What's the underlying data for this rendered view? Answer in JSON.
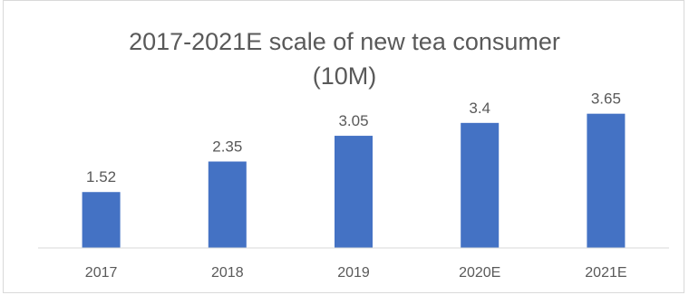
{
  "chart_data": {
    "type": "bar",
    "title": "2017-2021E scale of new tea consumer",
    "subtitle": "(10M)",
    "categories": [
      "2017",
      "2018",
      "2019",
      "2020E",
      "2021E"
    ],
    "values": [
      1.52,
      2.35,
      3.05,
      3.4,
      3.65
    ],
    "value_labels": [
      "1.52",
      "2.35",
      "3.05",
      "3.4",
      "3.65"
    ],
    "xlabel": "",
    "ylabel": "",
    "ylim": [
      0,
      4.7
    ],
    "grid": false,
    "legend": "none",
    "bar_color": "#4472C4",
    "axis_color": "#d9d9d9",
    "text_color": "#595959"
  }
}
